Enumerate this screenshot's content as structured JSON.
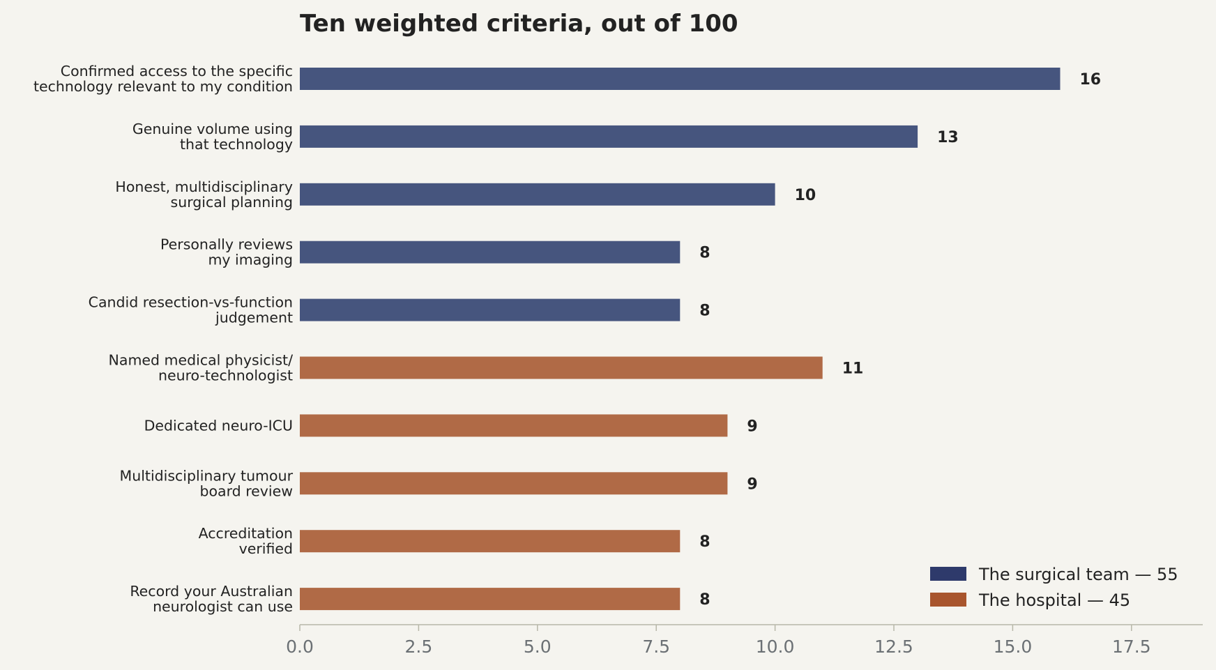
{
  "chart_data": {
    "type": "bar",
    "orientation": "horizontal",
    "title": "Ten weighted criteria, out of 100",
    "xlabel": "",
    "ylabel": "",
    "xlim": [
      0,
      19
    ],
    "x_ticks": [
      "0.0",
      "2.5",
      "5.0",
      "7.5",
      "10.0",
      "12.5",
      "15.0",
      "17.5"
    ],
    "grid": false,
    "legend_position": "bottom-right",
    "categories": [
      [
        "Confirmed access to the specific",
        "technology relevant to my condition"
      ],
      [
        "Genuine volume using",
        "that technology"
      ],
      [
        "Honest, multidisciplinary",
        "surgical planning"
      ],
      [
        "Personally reviews",
        "my imaging"
      ],
      [
        "Candid resection-vs-function",
        "judgement"
      ],
      [
        "Named medical physicist/",
        "neuro-technologist"
      ],
      [
        "Dedicated neuro-ICU"
      ],
      [
        "Multidisciplinary tumour",
        "board review"
      ],
      [
        "Accreditation",
        "verified"
      ],
      [
        "Record your Australian",
        "neurologist can use"
      ]
    ],
    "values": [
      16,
      13,
      10,
      8,
      8,
      11,
      9,
      9,
      8,
      8
    ],
    "value_labels": [
      "16",
      "13",
      "10",
      "8",
      "8",
      "11",
      "9",
      "9",
      "8",
      "8"
    ],
    "groups": [
      0,
      0,
      0,
      0,
      0,
      1,
      1,
      1,
      1,
      1
    ],
    "series": [
      {
        "name": "The surgical team — 55",
        "color": "#2e3a6b",
        "bar_color": "#46557e"
      },
      {
        "name": "The hospital — 45",
        "color": "#a8552d",
        "bar_color": "#b06a46"
      }
    ]
  },
  "colors": {
    "background": "#f5f4ef",
    "axis": "#b7b7a8",
    "tick_text": "#6b7074",
    "text": "#222222"
  }
}
